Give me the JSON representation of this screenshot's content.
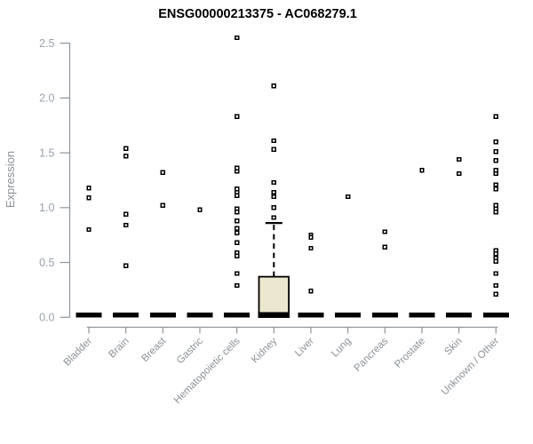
{
  "colors": {
    "background": "#ffffff",
    "title": "#000000",
    "axis": "#8f969c",
    "tick_label": "#99a1ab",
    "category_label": "#8b9196",
    "point_stroke": "#000000",
    "point_fill": "#ffffff",
    "zero_bar": "#000000",
    "box_fill": "#ece8cf",
    "box_stroke": "#000000"
  },
  "chart_data": {
    "type": "box",
    "title": "ENSG00000213375 - AC068279.1",
    "xlabel": "",
    "ylabel": "Expression",
    "ylim": [
      0,
      2.5
    ],
    "yticks": [
      "0.0",
      "0.5",
      "1.0",
      "1.5",
      "2.0",
      "2.5"
    ],
    "grid": false,
    "legend": "none",
    "categories": [
      "Bladder",
      "Brain",
      "Breast",
      "Gastric",
      "Hematopoietic cells",
      "Kidney",
      "Liver",
      "Lung",
      "Pancreas",
      "Prostate",
      "Skin",
      "Unknown / Other"
    ],
    "series": [
      {
        "category": "Bladder",
        "median": 0.0,
        "points": [
          1.18,
          1.09,
          0.8
        ]
      },
      {
        "category": "Brain",
        "median": 0.0,
        "points": [
          1.54,
          1.47,
          0.94,
          0.84,
          0.47
        ]
      },
      {
        "category": "Breast",
        "median": 0.0,
        "points": [
          1.32,
          1.02
        ]
      },
      {
        "category": "Gastric",
        "median": 0.0,
        "points": [
          0.98
        ]
      },
      {
        "category": "Hematopoietic cells",
        "median": 0.0,
        "points": [
          2.55,
          1.83,
          1.36,
          1.33,
          1.17,
          1.14,
          1.11,
          0.99,
          0.96,
          0.88,
          0.81,
          0.77,
          0.68,
          0.59,
          0.56,
          0.4,
          0.29
        ]
      },
      {
        "category": "Kidney",
        "median": 0.0,
        "box": {
          "q1": 0.02,
          "q3": 0.37,
          "whisker_high": 0.86,
          "whisker_low": 0.0
        },
        "points": [
          2.11,
          1.61,
          1.53,
          1.23,
          1.14,
          1.1,
          1.0,
          0.91
        ]
      },
      {
        "category": "Liver",
        "median": 0.0,
        "points": [
          0.75,
          0.73,
          0.63,
          0.24
        ]
      },
      {
        "category": "Lung",
        "median": 0.0,
        "points": [
          1.1
        ]
      },
      {
        "category": "Pancreas",
        "median": 0.0,
        "points": [
          0.78,
          0.64
        ]
      },
      {
        "category": "Prostate",
        "median": 0.0,
        "points": [
          1.34
        ]
      },
      {
        "category": "Skin",
        "median": 0.0,
        "points": [
          1.44,
          1.31
        ]
      },
      {
        "category": "Unknown / Other",
        "median": 0.0,
        "points": [
          1.83,
          1.6,
          1.51,
          1.43,
          1.34,
          1.31,
          1.21,
          1.17,
          1.02,
          0.99,
          0.96,
          0.61,
          0.58,
          0.54,
          0.51,
          0.4,
          0.29,
          0.21
        ]
      }
    ]
  }
}
